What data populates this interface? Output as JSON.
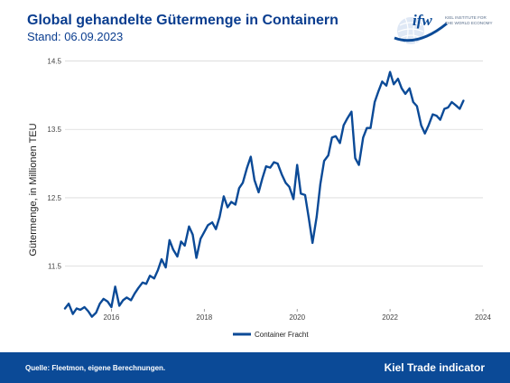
{
  "header": {
    "title": "Global gehandelte Gütermenge in Containern",
    "subtitle": "Stand: 06.09.2023"
  },
  "logo": {
    "mark": "ifw",
    "line1": "KIEL INSTITUTE FOR",
    "line2": "THE WORLD ECONOMY"
  },
  "footer": {
    "source": "Quelle: Fleetmon, eigene Berechnungen.",
    "brand": "Kiel Trade indicator"
  },
  "colors": {
    "series": "#0b4a97",
    "title": "#0a3d8f",
    "footer_bg": "#0b4a97"
  },
  "chart_data": {
    "type": "line",
    "title": "",
    "xlabel": "",
    "ylabel": "Gütermenge, in Millionen TEU",
    "ylim": [
      10.9,
      14.6
    ],
    "xlim": [
      2015.0,
      2024.0
    ],
    "y_ticks": [
      {
        "value": 11.5,
        "label": "11.5"
      },
      {
        "value": 12.5,
        "label": "12.5"
      },
      {
        "value": 13.5,
        "label": "13.5"
      },
      {
        "value": 14.5,
        "label": "14.5"
      }
    ],
    "x_ticks": [
      {
        "value": 2016,
        "label": "2016"
      },
      {
        "value": 2018,
        "label": "2018"
      },
      {
        "value": 2020,
        "label": "2020"
      },
      {
        "value": 2022,
        "label": "2022"
      },
      {
        "value": 2024,
        "label": "2024"
      }
    ],
    "grid": true,
    "legend_position": "bottom",
    "series": [
      {
        "name": "Container Fracht",
        "points": [
          [
            2015.0,
            10.88
          ],
          [
            2015.08,
            10.95
          ],
          [
            2015.17,
            10.8
          ],
          [
            2015.25,
            10.88
          ],
          [
            2015.33,
            10.86
          ],
          [
            2015.42,
            10.9
          ],
          [
            2015.5,
            10.84
          ],
          [
            2015.58,
            10.76
          ],
          [
            2015.67,
            10.82
          ],
          [
            2015.75,
            10.95
          ],
          [
            2015.83,
            11.02
          ],
          [
            2015.92,
            10.98
          ],
          [
            2016.0,
            10.9
          ],
          [
            2016.08,
            11.2
          ],
          [
            2016.17,
            10.92
          ],
          [
            2016.25,
            11.0
          ],
          [
            2016.33,
            11.04
          ],
          [
            2016.42,
            11.0
          ],
          [
            2016.5,
            11.1
          ],
          [
            2016.58,
            11.18
          ],
          [
            2016.67,
            11.26
          ],
          [
            2016.75,
            11.24
          ],
          [
            2016.83,
            11.36
          ],
          [
            2016.92,
            11.32
          ],
          [
            2017.0,
            11.44
          ],
          [
            2017.08,
            11.6
          ],
          [
            2017.17,
            11.48
          ],
          [
            2017.25,
            11.88
          ],
          [
            2017.33,
            11.74
          ],
          [
            2017.42,
            11.64
          ],
          [
            2017.5,
            11.86
          ],
          [
            2017.58,
            11.8
          ],
          [
            2017.67,
            12.08
          ],
          [
            2017.75,
            11.96
          ],
          [
            2017.83,
            11.62
          ],
          [
            2017.92,
            11.9
          ],
          [
            2018.0,
            12.0
          ],
          [
            2018.08,
            12.1
          ],
          [
            2018.17,
            12.14
          ],
          [
            2018.25,
            12.04
          ],
          [
            2018.33,
            12.22
          ],
          [
            2018.42,
            12.52
          ],
          [
            2018.5,
            12.36
          ],
          [
            2018.58,
            12.44
          ],
          [
            2018.67,
            12.4
          ],
          [
            2018.75,
            12.64
          ],
          [
            2018.83,
            12.72
          ],
          [
            2018.92,
            12.94
          ],
          [
            2019.0,
            13.1
          ],
          [
            2019.08,
            12.76
          ],
          [
            2019.17,
            12.58
          ],
          [
            2019.25,
            12.78
          ],
          [
            2019.33,
            12.96
          ],
          [
            2019.42,
            12.94
          ],
          [
            2019.5,
            13.02
          ],
          [
            2019.58,
            13.0
          ],
          [
            2019.67,
            12.84
          ],
          [
            2019.75,
            12.72
          ],
          [
            2019.83,
            12.66
          ],
          [
            2019.92,
            12.48
          ],
          [
            2020.0,
            12.98
          ],
          [
            2020.08,
            12.56
          ],
          [
            2020.17,
            12.54
          ],
          [
            2020.25,
            12.2
          ],
          [
            2020.33,
            11.84
          ],
          [
            2020.42,
            12.22
          ],
          [
            2020.5,
            12.7
          ],
          [
            2020.58,
            13.04
          ],
          [
            2020.67,
            13.12
          ],
          [
            2020.75,
            13.38
          ],
          [
            2020.83,
            13.4
          ],
          [
            2020.92,
            13.3
          ],
          [
            2021.0,
            13.56
          ],
          [
            2021.08,
            13.66
          ],
          [
            2021.17,
            13.76
          ],
          [
            2021.25,
            13.08
          ],
          [
            2021.33,
            12.98
          ],
          [
            2021.42,
            13.38
          ],
          [
            2021.5,
            13.52
          ],
          [
            2021.58,
            13.52
          ],
          [
            2021.67,
            13.9
          ],
          [
            2021.75,
            14.06
          ],
          [
            2021.83,
            14.2
          ],
          [
            2021.92,
            14.14
          ],
          [
            2022.0,
            14.34
          ],
          [
            2022.08,
            14.16
          ],
          [
            2022.17,
            14.24
          ],
          [
            2022.25,
            14.1
          ],
          [
            2022.33,
            14.02
          ],
          [
            2022.42,
            14.1
          ],
          [
            2022.5,
            13.9
          ],
          [
            2022.58,
            13.84
          ],
          [
            2022.67,
            13.56
          ],
          [
            2022.75,
            13.44
          ],
          [
            2022.83,
            13.56
          ],
          [
            2022.92,
            13.72
          ],
          [
            2023.0,
            13.7
          ],
          [
            2023.08,
            13.64
          ],
          [
            2023.17,
            13.8
          ],
          [
            2023.25,
            13.82
          ],
          [
            2023.33,
            13.9
          ],
          [
            2023.42,
            13.85
          ],
          [
            2023.5,
            13.8
          ],
          [
            2023.58,
            13.92
          ]
        ]
      }
    ]
  }
}
